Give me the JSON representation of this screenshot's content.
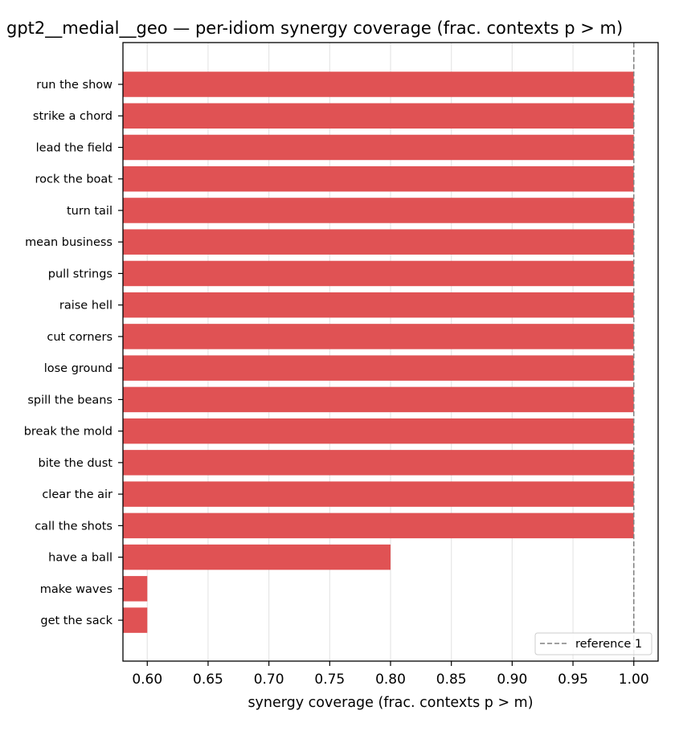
{
  "chart_data": {
    "type": "bar",
    "orientation": "horizontal",
    "title": "gpt2__medial__geo — per-idiom synergy coverage  (frac. contexts p > m)",
    "xlabel": "synergy coverage  (frac. contexts p > m)",
    "ylabel": "",
    "xlim": [
      0.58,
      1.02
    ],
    "xticks": [
      "0.60",
      "0.65",
      "0.70",
      "0.75",
      "0.80",
      "0.85",
      "0.90",
      "0.95",
      "1.00"
    ],
    "grid": "vertical",
    "bar_color": "#e05254",
    "categories": [
      "run the show",
      "strike a chord",
      "lead the field",
      "rock the boat",
      "turn tail",
      "mean business",
      "pull strings",
      "raise hell",
      "cut corners",
      "lose ground",
      "spill the beans",
      "break the mold",
      "bite the dust",
      "clear the air",
      "call the shots",
      "have a ball",
      "make waves",
      "get the sack"
    ],
    "values": [
      1.0,
      1.0,
      1.0,
      1.0,
      1.0,
      1.0,
      1.0,
      1.0,
      1.0,
      1.0,
      1.0,
      1.0,
      1.0,
      1.0,
      1.0,
      0.8,
      0.6,
      0.6
    ],
    "reference_line": {
      "value": 1.0,
      "label": "reference 1",
      "color": "#808080",
      "style": "dashed"
    },
    "legend_position": "bottom-right"
  }
}
